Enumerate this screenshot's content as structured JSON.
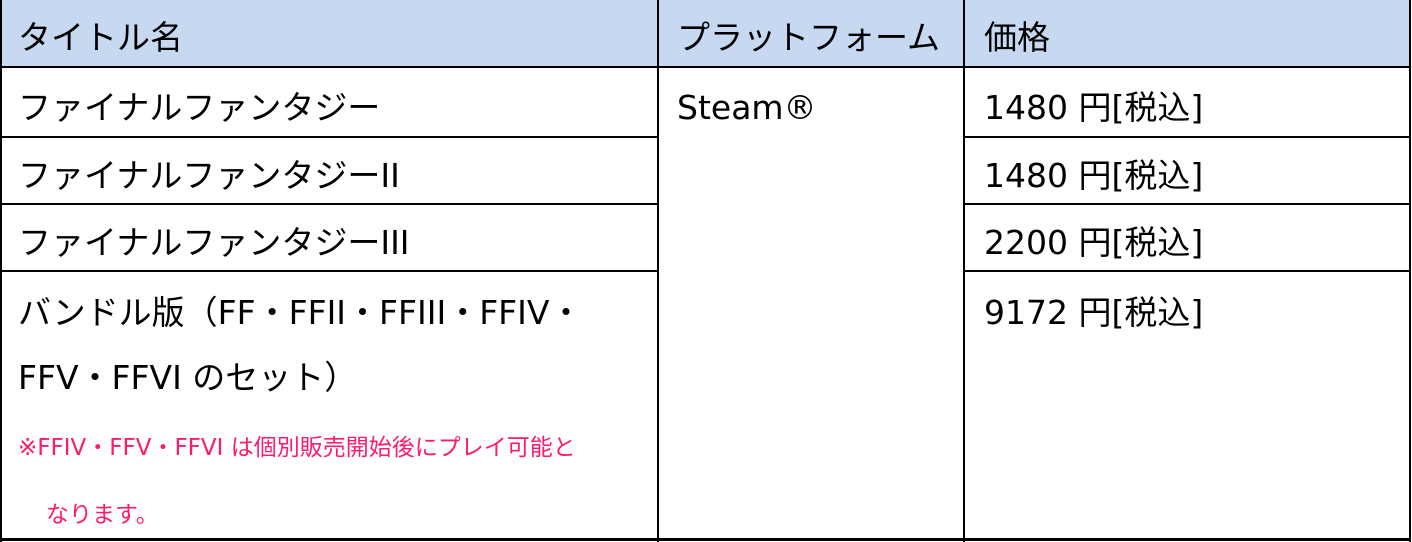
{
  "table": {
    "headers": [
      "タイトル名",
      "プラットフォーム",
      "価格"
    ],
    "platform": "Steam®",
    "rows": [
      {
        "title": "ファイナルファンタジー",
        "price": "1480 円[税込]"
      },
      {
        "title": "ファイナルファンタジーII",
        "price": "1480 円[税込]"
      },
      {
        "title": "ファイナルファンタジーIII",
        "price": "2200 円[税込]"
      },
      {
        "title_line1": "バンドル版（FF・FFII・FFIII・FFIV・",
        "title_line2": "FFV・FFVI のセット）",
        "price": "9172 円[税込]",
        "note_line1": "※FFIV・FFV・FFVI は個別販売開始後にプレイ可能と",
        "note_line2": "なります。"
      }
    ]
  },
  "colors": {
    "header_bg": "#c6d9f1",
    "note": "#ff1a6e"
  }
}
